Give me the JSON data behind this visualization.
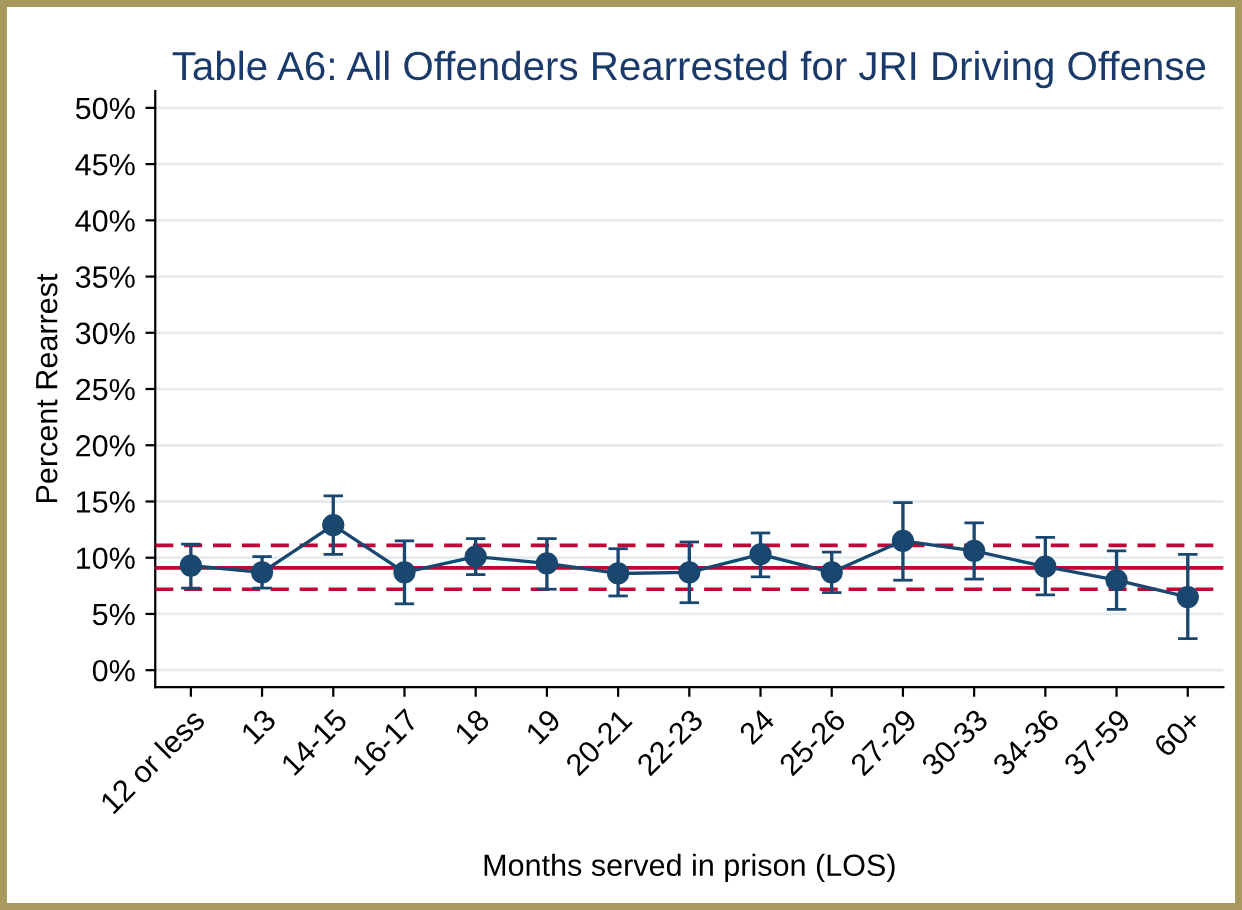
{
  "chart_data": {
    "type": "line",
    "title": "Table A6: All Offenders Rearrested for JRI Driving Offense",
    "xlabel": "Months served in prison (LOS)",
    "ylabel": "Percent Rearrest",
    "categories": [
      "12 or less",
      "13",
      "14-15",
      "16-17",
      "18",
      "19",
      "20-21",
      "22-23",
      "24",
      "25-26",
      "27-29",
      "30-33",
      "34-36",
      "37-59",
      "60+"
    ],
    "series": [
      {
        "color": "#1a476f",
        "values": [
          9.3,
          8.7,
          12.9,
          8.7,
          10.1,
          9.5,
          8.6,
          8.7,
          10.3,
          8.7,
          11.5,
          10.6,
          9.2,
          8.0,
          6.5
        ],
        "errors": [
          [
            7.3,
            11.2
          ],
          [
            7.3,
            10.1
          ],
          [
            10.3,
            15.5
          ],
          [
            5.9,
            11.5
          ],
          [
            8.5,
            11.7
          ],
          [
            7.2,
            11.7
          ],
          [
            6.6,
            10.8
          ],
          [
            6.0,
            11.4
          ],
          [
            8.3,
            12.2
          ],
          [
            6.9,
            10.5
          ],
          [
            8.0,
            14.9
          ],
          [
            8.1,
            13.1
          ],
          [
            6.7,
            11.8
          ],
          [
            5.4,
            10.6
          ],
          [
            2.8,
            10.3
          ]
        ]
      }
    ],
    "marker": "circle",
    "line_style": "solid",
    "ylim": [
      -1.5,
      51.5
    ],
    "yticks": [
      {
        "value": 0,
        "label": "0%"
      },
      {
        "value": 5,
        "label": "5%"
      },
      {
        "value": 10,
        "label": "10%"
      },
      {
        "value": 15,
        "label": "15%"
      },
      {
        "value": 20,
        "label": "20%"
      },
      {
        "value": 25,
        "label": "25%"
      },
      {
        "value": 30,
        "label": "30%"
      },
      {
        "value": 35,
        "label": "35%"
      },
      {
        "value": 40,
        "label": "40%"
      },
      {
        "value": 45,
        "label": "45%"
      },
      {
        "value": 50,
        "label": "50%"
      }
    ],
    "grid": "y",
    "ref_lines": [
      {
        "axis": "y",
        "value": 9.1,
        "color": "#c10534",
        "line_style": "solid"
      },
      {
        "axis": "y",
        "value": 11.1,
        "color": "#c10534",
        "line_style": "dashed"
      },
      {
        "axis": "y",
        "value": 7.2,
        "color": "#c10534",
        "line_style": "dashed"
      }
    ]
  }
}
